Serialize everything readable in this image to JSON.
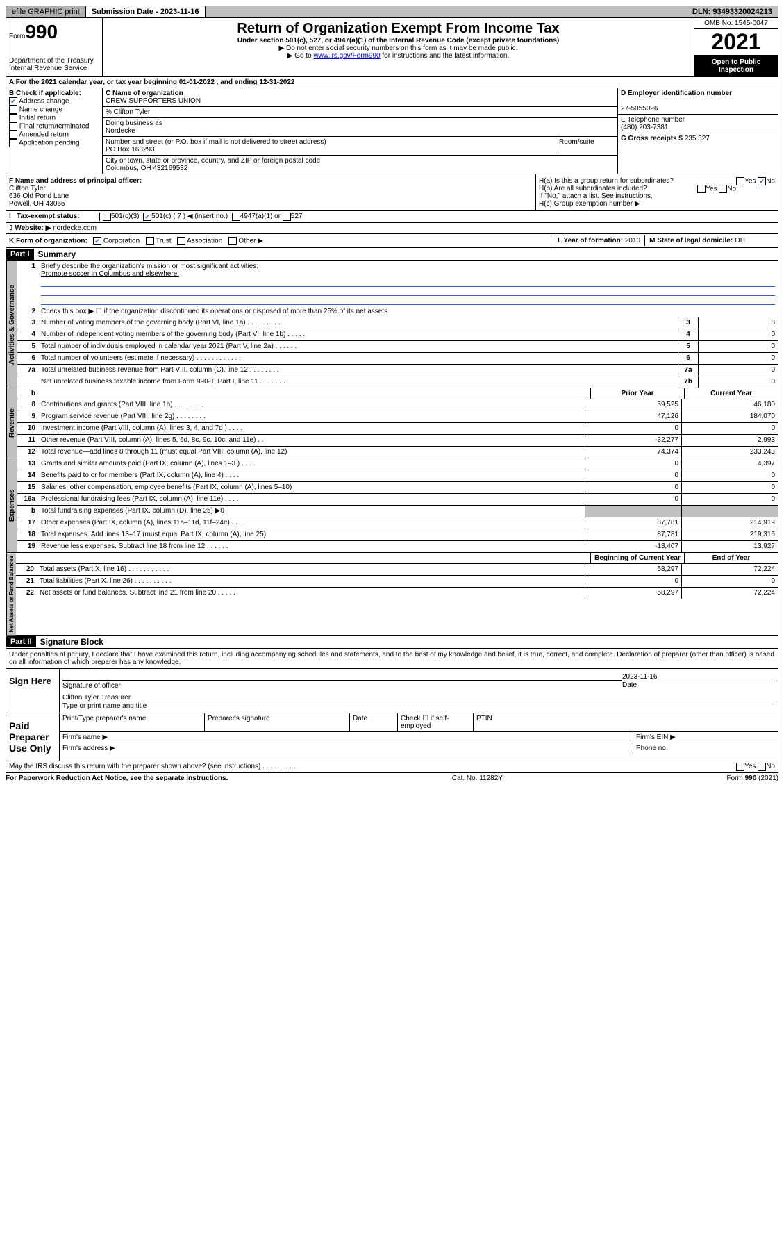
{
  "topbar": {
    "efile_btn": "efile GRAPHIC print",
    "submission_label": "Submission Date - 2023-11-16",
    "dln_label": "DLN: 93493320024213"
  },
  "header": {
    "form_label": "Form",
    "form_no": "990",
    "dept": "Department of the Treasury",
    "irs": "Internal Revenue Service",
    "title": "Return of Organization Exempt From Income Tax",
    "sub": "Under section 501(c), 527, or 4947(a)(1) of the Internal Revenue Code (except private foundations)",
    "note1": "▶ Do not enter social security numbers on this form as it may be made public.",
    "note2_pre": "▶ Go to ",
    "note2_link": "www.irs.gov/Form990",
    "note2_post": " for instructions and the latest information.",
    "omb": "OMB No. 1545-0047",
    "year": "2021",
    "open": "Open to Public Inspection"
  },
  "line_a": "A  For the 2021 calendar year, or tax year beginning 01-01-2022    , and ending 12-31-2022",
  "box_b": {
    "label": "B Check if applicable:",
    "items": [
      {
        "txt": "Address change",
        "checked": true
      },
      {
        "txt": "Name change",
        "checked": false
      },
      {
        "txt": "Initial return",
        "checked": false
      },
      {
        "txt": "Final return/terminated",
        "checked": false
      },
      {
        "txt": "Amended return",
        "checked": false
      },
      {
        "txt": "Application pending",
        "checked": false
      }
    ]
  },
  "box_c": {
    "name_label": "C Name of organization",
    "name": "CREW SUPPORTERS UNION",
    "care": "% Clifton Tyler",
    "dba_label": "Doing business as",
    "dba": "Nordecke",
    "addr_label": "Number and street (or P.O. box if mail is not delivered to street address)",
    "room_label": "Room/suite",
    "addr": "PO Box 163293",
    "city_label": "City or town, state or province, country, and ZIP or foreign postal code",
    "city": "Columbus, OH  432169532"
  },
  "box_de": {
    "d_label": "D Employer identification number",
    "d_val": "27-5055096",
    "e_label": "E Telephone number",
    "e_val": "(480) 203-7381",
    "g_label": "G Gross receipts $",
    "g_val": "235,327"
  },
  "box_f": {
    "label": "F  Name and address of principal officer:",
    "name": "Clifton Tyler",
    "addr1": "636 Old Pond Lane",
    "addr2": "Powell, OH  43065"
  },
  "box_h": {
    "a": "H(a)  Is this a group return for subordinates?",
    "a_no_checked": true,
    "b": "H(b)  Are all subordinates included?",
    "b_note": "If \"No,\" attach a list. See instructions.",
    "c": "H(c)  Group exemption number ▶",
    "yes": "Yes",
    "no": "No"
  },
  "row_i": {
    "label": "Tax-exempt status:",
    "opt1": "501(c)(3)",
    "opt2_checked": true,
    "opt2": "501(c) ( 7 ) ◀ (insert no.)",
    "opt3": "4947(a)(1) or",
    "opt4": "527"
  },
  "row_j": {
    "label": "J  Website: ▶",
    "val": "nordecke.com"
  },
  "row_k": {
    "label": "K Form of organization:",
    "corp_checked": true,
    "corp": "Corporation",
    "trust": "Trust",
    "assoc": "Association",
    "other": "Other ▶",
    "l_label": "L Year of formation:",
    "l_val": "2010",
    "m_label": "M State of legal domicile:",
    "m_val": "OH"
  },
  "part1": {
    "hdr": "Part I",
    "title": "Summary",
    "vlabel_gov": "Activities & Governance",
    "line1_label": "Briefly describe the organization's mission or most significant activities:",
    "line1_val": "Promote soccer in Columbus and elsewhere.",
    "line2": "Check this box ▶ ☐  if the organization discontinued its operations or disposed of more than 25% of its net assets.",
    "rows_single": [
      {
        "no": "3",
        "txt": "Number of voting members of the governing body (Part VI, line 1a)  .   .   .   .   .   .   .   .   .",
        "box": "3",
        "val": "8"
      },
      {
        "no": "4",
        "txt": "Number of independent voting members of the governing body (Part VI, line 1b)   .    .    .    .    .",
        "box": "4",
        "val": "0"
      },
      {
        "no": "5",
        "txt": "Total number of individuals employed in calendar year 2021 (Part V, line 2a)   .    .    .    .    .    .",
        "box": "5",
        "val": "0"
      },
      {
        "no": "6",
        "txt": "Total number of volunteers (estimate if necessary)   .    .    .    .    .    .    .    .    .    .    .    .",
        "box": "6",
        "val": "0"
      },
      {
        "no": "7a",
        "txt": "Total unrelated business revenue from Part VIII, column (C), line 12   .    .    .    .    .    .    .    .",
        "box": "7a",
        "val": "0"
      },
      {
        "no": "",
        "txt": "Net unrelated business taxable income from Form 990-T, Part I, line 11   .    .    .    .    .    .    .",
        "box": "7b",
        "val": "0"
      }
    ],
    "b_label": "b",
    "vlabel_rev": "Revenue",
    "prior_hdr": "Prior Year",
    "curr_hdr": "Current Year",
    "rows_rev": [
      {
        "no": "8",
        "txt": "Contributions and grants (Part VIII, line 1h)   .    .    .    .    .    .    .    .",
        "prior": "59,525",
        "curr": "46,180"
      },
      {
        "no": "9",
        "txt": "Program service revenue (Part VIII, line 2g)   .    .    .    .    .    .    .    .",
        "prior": "47,126",
        "curr": "184,070"
      },
      {
        "no": "10",
        "txt": "Investment income (Part VIII, column (A), lines 3, 4, and 7d )   .    .    .    .",
        "prior": "0",
        "curr": "0"
      },
      {
        "no": "11",
        "txt": "Other revenue (Part VIII, column (A), lines 5, 6d, 8c, 9c, 10c, and 11e)   .    .",
        "prior": "-32,277",
        "curr": "2,993"
      },
      {
        "no": "12",
        "txt": "Total revenue—add lines 8 through 11 (must equal Part VIII, column (A), line 12)",
        "prior": "74,374",
        "curr": "233,243"
      }
    ],
    "vlabel_exp": "Expenses",
    "rows_exp": [
      {
        "no": "13",
        "txt": "Grants and similar amounts paid (Part IX, column (A), lines 1–3 )   .    .    .",
        "prior": "0",
        "curr": "4,397"
      },
      {
        "no": "14",
        "txt": "Benefits paid to or for members (Part IX, column (A), line 4)   .    .    .    .",
        "prior": "0",
        "curr": "0"
      },
      {
        "no": "15",
        "txt": "Salaries, other compensation, employee benefits (Part IX, column (A), lines 5–10)",
        "prior": "0",
        "curr": "0"
      },
      {
        "no": "16a",
        "txt": "Professional fundraising fees (Part IX, column (A), line 11e)   .    .    .    .",
        "prior": "0",
        "curr": "0"
      },
      {
        "no": "b",
        "txt": "Total fundraising expenses (Part IX, column (D), line 25) ▶0",
        "prior": "shade",
        "curr": "shade"
      },
      {
        "no": "17",
        "txt": "Other expenses (Part IX, column (A), lines 11a–11d, 11f–24e)   .    .    .    .",
        "prior": "87,781",
        "curr": "214,919"
      },
      {
        "no": "18",
        "txt": "Total expenses. Add lines 13–17 (must equal Part IX, column (A), line 25)",
        "prior": "87,781",
        "curr": "219,316"
      },
      {
        "no": "19",
        "txt": "Revenue less expenses. Subtract line 18 from line 12   .    .    .    .    .    .",
        "prior": "-13,407",
        "curr": "13,927"
      }
    ],
    "vlabel_net": "Net Assets or Fund Balances",
    "begin_hdr": "Beginning of Current Year",
    "end_hdr": "End of Year",
    "rows_net": [
      {
        "no": "20",
        "txt": "Total assets (Part X, line 16)   .    .    .    .    .    .    .    .    .    .    .",
        "prior": "58,297",
        "curr": "72,224"
      },
      {
        "no": "21",
        "txt": "Total liabilities (Part X, line 26)   .    .    .    .    .    .    .    .    .    .",
        "prior": "0",
        "curr": "0"
      },
      {
        "no": "22",
        "txt": "Net assets or fund balances. Subtract line 21 from line 20   .    .    .    .    .",
        "prior": "58,297",
        "curr": "72,224"
      }
    ]
  },
  "part2": {
    "hdr": "Part II",
    "title": "Signature Block",
    "decl": "Under penalties of perjury, I declare that I have examined this return, including accompanying schedules and statements, and to the best of my knowledge and belief, it is true, correct, and complete. Declaration of preparer (other than officer) is based on all information of which preparer has any knowledge.",
    "sign_here": "Sign Here",
    "sig_officer": "Signature of officer",
    "date_label": "Date",
    "date_val": "2023-11-16",
    "name_title_val": "Clifton Tyler  Treasurer",
    "name_title_label": "Type or print name and title",
    "paid_label": "Paid Preparer Use Only",
    "prep_name": "Print/Type preparer's name",
    "prep_sig": "Preparer's signature",
    "prep_date": "Date",
    "self_emp": "Check ☐ if self-employed",
    "ptin": "PTIN",
    "firm_name": "Firm's name    ▶",
    "firm_ein": "Firm's EIN ▶",
    "firm_addr": "Firm's address ▶",
    "phone": "Phone no.",
    "discuss": "May the IRS discuss this return with the preparer shown above? (see instructions)   .    .    .    .    .    .    .    .    .",
    "yes": "Yes",
    "no": "No"
  },
  "footer": {
    "left": "For Paperwork Reduction Act Notice, see the separate instructions.",
    "mid": "Cat. No. 11282Y",
    "right_pre": "Form ",
    "right_bold": "990",
    "right_post": " (2021)"
  }
}
